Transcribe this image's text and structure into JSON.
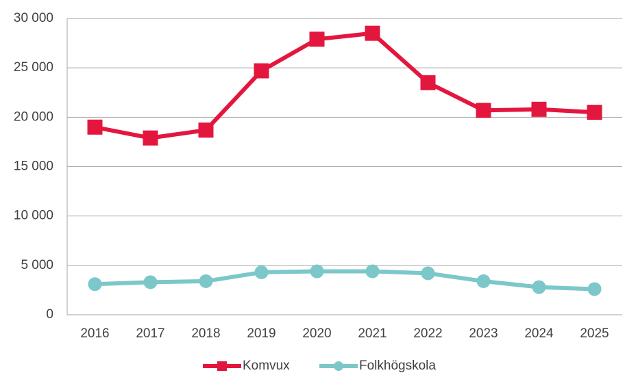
{
  "chart_data": {
    "type": "line",
    "categories": [
      "2016",
      "2017",
      "2018",
      "2019",
      "2020",
      "2021",
      "2022",
      "2023",
      "2024",
      "2025"
    ],
    "series": [
      {
        "name": "Komvux",
        "color": "#e3173e",
        "marker": "square",
        "values": [
          19000,
          17900,
          18700,
          24700,
          27900,
          28500,
          23500,
          20700,
          20800,
          20500
        ]
      },
      {
        "name": "Folkhögskola",
        "color": "#7cc7c9",
        "marker": "circle",
        "values": [
          3100,
          3300,
          3400,
          4300,
          4400,
          4400,
          4200,
          3400,
          2800,
          2600
        ]
      }
    ],
    "ylim": [
      0,
      30000
    ],
    "yticks": [
      0,
      {
        "value": 5000,
        "label": "5 000"
      },
      {
        "value": 10000,
        "label": "10 000"
      },
      {
        "value": 15000,
        "label": "15 000"
      },
      {
        "value": 20000,
        "label": "20 000"
      },
      {
        "value": 25000,
        "label": "25 000"
      },
      {
        "value": 30000,
        "label": "30 000"
      }
    ],
    "grid": true,
    "legend": "bottom"
  }
}
